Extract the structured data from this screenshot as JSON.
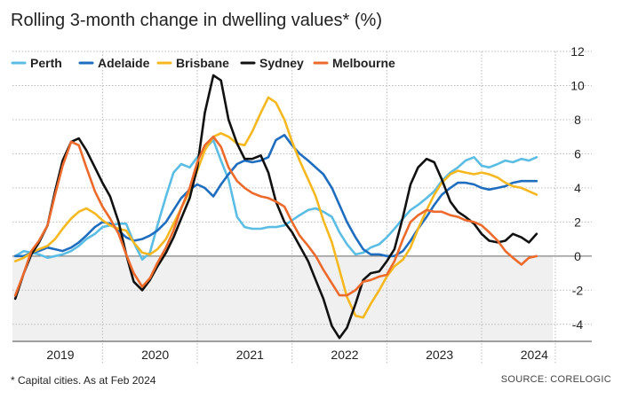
{
  "title": "Rolling 3-month change in dwelling values* (%)",
  "footnote": "* Capital cities. As at Feb 2024",
  "source": "SOURCE: CORELOGIC",
  "chart_data": {
    "type": "line",
    "title": "Rolling 3-month change in dwelling values* (%)",
    "xlabel": "",
    "ylabel": "",
    "ylim": [
      -5,
      12
    ],
    "xlim": [
      2018.55,
      2024.25
    ],
    "y_ticks": [
      12,
      10,
      8,
      6,
      4,
      2,
      0,
      -2,
      -4
    ],
    "x_ticks": [
      {
        "label": "2019",
        "value": 2019.0
      },
      {
        "label": "2020",
        "value": 2020.0
      },
      {
        "label": "2021",
        "value": 2021.0
      },
      {
        "label": "2022",
        "value": 2022.0
      },
      {
        "label": "2023",
        "value": 2023.0
      },
      {
        "label": "2024",
        "value": 2024.0
      }
    ],
    "grid": "horizontal dashed",
    "legend_position": "top",
    "series": [
      {
        "name": "Perth",
        "color": "#5bbde4",
        "x": [
          2018.58,
          2018.67,
          2018.75,
          2018.83,
          2018.92,
          2019.0,
          2019.08,
          2019.17,
          2019.25,
          2019.33,
          2019.42,
          2019.5,
          2019.58,
          2019.67,
          2019.75,
          2019.83,
          2019.92,
          2020.0,
          2020.08,
          2020.17,
          2020.25,
          2020.33,
          2020.42,
          2020.5,
          2020.58,
          2020.67,
          2020.75,
          2020.83,
          2020.92,
          2021.0,
          2021.08,
          2021.17,
          2021.25,
          2021.33,
          2021.42,
          2021.5,
          2021.58,
          2021.67,
          2021.75,
          2021.83,
          2021.92,
          2022.0,
          2022.08,
          2022.17,
          2022.25,
          2022.33,
          2022.42,
          2022.5,
          2022.58,
          2022.67,
          2022.75,
          2022.83,
          2022.92,
          2023.0,
          2023.08,
          2023.17,
          2023.25,
          2023.33,
          2023.42,
          2023.5,
          2023.58,
          2023.67,
          2023.75,
          2023.83,
          2023.92,
          2024.0,
          2024.08
        ],
        "values": [
          0,
          0.3,
          0.2,
          0.1,
          -0.1,
          0,
          0.1,
          0.3,
          0.6,
          1.0,
          1.3,
          1.7,
          1.8,
          1.9,
          1.9,
          0.8,
          -0.2,
          0.2,
          1.8,
          3.5,
          4.9,
          5.4,
          5.2,
          5.8,
          6.3,
          6.8,
          5.6,
          4.5,
          2.3,
          1.7,
          1.6,
          1.6,
          1.7,
          1.7,
          1.8,
          2.1,
          2.4,
          2.7,
          2.8,
          2.6,
          2.3,
          1.4,
          0.7,
          0.1,
          0.2,
          0.5,
          0.7,
          1.1,
          1.6,
          2.2,
          2.7,
          3.0,
          3.4,
          3.8,
          4.4,
          4.9,
          5.2,
          5.6,
          5.8,
          5.3,
          5.2,
          5.4,
          5.6,
          5.5,
          5.7,
          5.6,
          5.8
        ]
      },
      {
        "name": "Adelaide",
        "color": "#1f6dbf",
        "x": [
          2018.58,
          2018.67,
          2018.75,
          2018.83,
          2018.92,
          2019.0,
          2019.08,
          2019.17,
          2019.25,
          2019.33,
          2019.42,
          2019.5,
          2019.58,
          2019.67,
          2019.75,
          2019.83,
          2019.92,
          2020.0,
          2020.08,
          2020.17,
          2020.25,
          2020.33,
          2020.42,
          2020.5,
          2020.58,
          2020.67,
          2020.75,
          2020.83,
          2020.92,
          2021.0,
          2021.08,
          2021.17,
          2021.25,
          2021.33,
          2021.42,
          2021.5,
          2021.58,
          2021.67,
          2021.75,
          2021.83,
          2021.92,
          2022.0,
          2022.08,
          2022.17,
          2022.25,
          2022.33,
          2022.42,
          2022.5,
          2022.58,
          2022.67,
          2022.75,
          2022.83,
          2022.92,
          2023.0,
          2023.08,
          2023.17,
          2023.25,
          2023.33,
          2023.42,
          2023.5,
          2023.58,
          2023.67,
          2023.75,
          2023.83,
          2023.92,
          2024.0,
          2024.08
        ],
        "values": [
          0,
          0,
          0.2,
          0.3,
          0.5,
          0.4,
          0.3,
          0.5,
          0.8,
          1.2,
          1.7,
          2.0,
          1.9,
          1.5,
          1.1,
          0.9,
          1.0,
          1.2,
          1.5,
          2.0,
          2.7,
          3.4,
          3.9,
          4.2,
          4.0,
          3.5,
          4.2,
          4.8,
          5.4,
          5.6,
          5.5,
          5.6,
          5.8,
          6.8,
          7.1,
          6.5,
          6.0,
          5.6,
          5.2,
          4.8,
          4.0,
          3.0,
          2.0,
          1.1,
          0.4,
          0.1,
          0.1,
          0,
          0,
          0.3,
          0.9,
          1.6,
          2.3,
          3.0,
          3.6,
          4.0,
          4.3,
          4.3,
          4.2,
          4.0,
          3.9,
          4.0,
          4.1,
          4.3,
          4.4,
          4.4,
          4.4
        ]
      },
      {
        "name": "Brisbane",
        "color": "#f5b820",
        "x": [
          2018.58,
          2018.67,
          2018.75,
          2018.83,
          2018.92,
          2019.0,
          2019.08,
          2019.17,
          2019.25,
          2019.33,
          2019.42,
          2019.5,
          2019.58,
          2019.67,
          2019.75,
          2019.83,
          2019.92,
          2020.0,
          2020.08,
          2020.17,
          2020.25,
          2020.33,
          2020.42,
          2020.5,
          2020.58,
          2020.67,
          2020.75,
          2020.83,
          2020.92,
          2021.0,
          2021.08,
          2021.17,
          2021.25,
          2021.33,
          2021.42,
          2021.5,
          2021.58,
          2021.67,
          2021.75,
          2021.83,
          2021.92,
          2022.0,
          2022.08,
          2022.17,
          2022.25,
          2022.33,
          2022.42,
          2022.5,
          2022.58,
          2022.67,
          2022.75,
          2022.83,
          2022.92,
          2023.0,
          2023.08,
          2023.17,
          2023.25,
          2023.33,
          2023.42,
          2023.5,
          2023.58,
          2023.67,
          2023.75,
          2023.83,
          2023.92,
          2024.0,
          2024.08
        ],
        "values": [
          -0.3,
          -0.1,
          0.2,
          0.4,
          0.6,
          1.0,
          1.6,
          2.2,
          2.6,
          2.8,
          2.5,
          2.1,
          1.8,
          1.6,
          1.5,
          0.8,
          0.2,
          0.1,
          0.4,
          1.0,
          1.9,
          2.8,
          3.8,
          5.0,
          6.2,
          7.0,
          7.2,
          7.0,
          6.6,
          6.5,
          7.3,
          8.4,
          9.3,
          9.0,
          8.0,
          6.7,
          5.6,
          4.5,
          3.5,
          2.1,
          0.8,
          -0.8,
          -2.4,
          -3.5,
          -3.6,
          -2.8,
          -2.0,
          -1.2,
          -0.6,
          -0.2,
          0.5,
          1.6,
          2.7,
          3.6,
          4.3,
          4.8,
          5.0,
          4.9,
          4.8,
          4.9,
          4.8,
          4.6,
          4.3,
          4.1,
          4.0,
          3.8,
          3.6
        ]
      },
      {
        "name": "Sydney",
        "color": "#111111",
        "x": [
          2018.58,
          2018.67,
          2018.75,
          2018.83,
          2018.92,
          2019.0,
          2019.08,
          2019.17,
          2019.25,
          2019.33,
          2019.42,
          2019.5,
          2019.58,
          2019.67,
          2019.75,
          2019.83,
          2019.92,
          2020.0,
          2020.08,
          2020.17,
          2020.25,
          2020.33,
          2020.42,
          2020.5,
          2020.58,
          2020.67,
          2020.75,
          2020.83,
          2020.92,
          2021.0,
          2021.08,
          2021.17,
          2021.25,
          2021.33,
          2021.42,
          2021.5,
          2021.58,
          2021.67,
          2021.75,
          2021.83,
          2021.92,
          2022.0,
          2022.08,
          2022.17,
          2022.25,
          2022.33,
          2022.42,
          2022.5,
          2022.58,
          2022.67,
          2022.75,
          2022.83,
          2022.92,
          2023.0,
          2023.08,
          2023.17,
          2023.25,
          2023.33,
          2023.42,
          2023.5,
          2023.58,
          2023.67,
          2023.75,
          2023.83,
          2023.92,
          2024.0,
          2024.08
        ],
        "values": [
          -2.5,
          -1.0,
          0.1,
          0.8,
          1.8,
          3.8,
          5.6,
          6.7,
          6.9,
          6.2,
          5.2,
          4.3,
          3.5,
          2.0,
          0.1,
          -1.5,
          -2.0,
          -1.4,
          -0.6,
          0.2,
          1.1,
          2.2,
          3.4,
          5.2,
          8.4,
          10.6,
          10.3,
          8.0,
          6.6,
          5.7,
          5.7,
          5.9,
          4.9,
          3.2,
          2.0,
          1.4,
          0.6,
          -0.3,
          -1.4,
          -2.5,
          -4.1,
          -4.8,
          -4.2,
          -2.8,
          -1.4,
          -1.0,
          -0.9,
          -0.3,
          0.4,
          2.3,
          4.2,
          5.2,
          5.7,
          5.5,
          4.5,
          3.2,
          2.6,
          2.3,
          1.9,
          1.3,
          0.9,
          0.8,
          0.9,
          1.3,
          1.1,
          0.8,
          1.3
        ]
      },
      {
        "name": "Melbourne",
        "color": "#ec6a2c",
        "x": [
          2018.58,
          2018.67,
          2018.75,
          2018.83,
          2018.92,
          2019.0,
          2019.08,
          2019.17,
          2019.25,
          2019.33,
          2019.42,
          2019.5,
          2019.58,
          2019.67,
          2019.75,
          2019.83,
          2019.92,
          2020.0,
          2020.08,
          2020.17,
          2020.25,
          2020.33,
          2020.42,
          2020.5,
          2020.58,
          2020.67,
          2020.75,
          2020.83,
          2020.92,
          2021.0,
          2021.08,
          2021.17,
          2021.25,
          2021.33,
          2021.42,
          2021.5,
          2021.58,
          2021.67,
          2021.75,
          2021.83,
          2021.92,
          2022.0,
          2022.08,
          2022.17,
          2022.25,
          2022.33,
          2022.42,
          2022.5,
          2022.58,
          2022.67,
          2022.75,
          2022.83,
          2022.92,
          2023.0,
          2023.08,
          2023.17,
          2023.25,
          2023.33,
          2023.42,
          2023.5,
          2023.58,
          2023.67,
          2023.75,
          2023.83,
          2023.92,
          2024.0,
          2024.08
        ],
        "values": [
          -2.3,
          -1.0,
          0.3,
          0.9,
          1.8,
          3.6,
          5.3,
          6.7,
          6.5,
          5.2,
          3.8,
          2.9,
          2.2,
          1.3,
          0.1,
          -1.0,
          -1.8,
          -1.3,
          -0.4,
          0.5,
          1.5,
          2.8,
          4.0,
          5.5,
          6.5,
          7.0,
          6.4,
          5.2,
          4.4,
          4.0,
          3.7,
          3.5,
          3.4,
          3.2,
          2.9,
          2.0,
          1.2,
          0.6,
          0,
          -0.8,
          -1.6,
          -2.3,
          -2.3,
          -2.0,
          -1.5,
          -1.4,
          -1.2,
          -1.1,
          -0.3,
          1.0,
          2.0,
          2.4,
          2.7,
          2.6,
          2.6,
          2.4,
          2.3,
          2.1,
          2.0,
          1.8,
          1.4,
          0.9,
          0.3,
          -0.1,
          -0.5,
          -0.1,
          0
        ]
      }
    ]
  }
}
